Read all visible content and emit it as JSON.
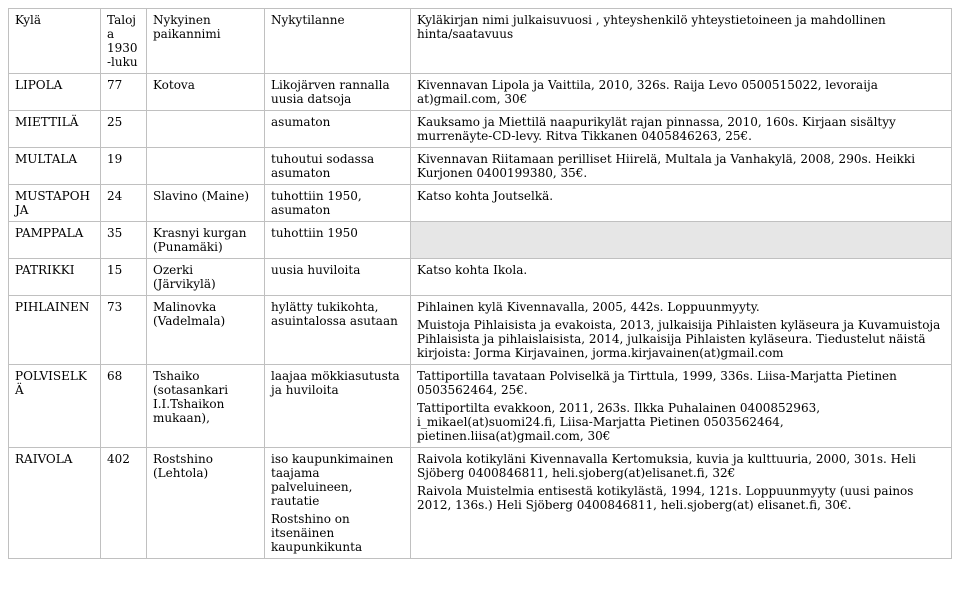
{
  "columns": [
    "Kylä",
    "Taloja 1930-luku",
    "Nykyinen paikannimi",
    "Nykytilanne",
    "Kyläkirjan nimi julkaisuvuosi , yhteyshenkilö yhteystietoineen ja  mahdollinen hinta/saatavuus"
  ],
  "rows": [
    {
      "kyla": "LIPOLA",
      "taloja": "77",
      "nimi": "Kotova",
      "tilanne": "Likojärven rannalla uusia datsoja",
      "kirja": [
        "Kivennavan Lipola ja Vaittila, 2010, 326s. Raija Levo 0500515022, levoraija at)gmail.com, 30€"
      ]
    },
    {
      "kyla": "MIETTILÄ",
      "taloja": "25",
      "nimi": "",
      "tilanne": "asumaton",
      "kirja": [
        "Kauksamo ja Miettilä naapurikylät rajan pinnassa, 2010, 160s. Kirjaan sisältyy murrenäyte-CD-levy. Ritva Tikkanen 0405846263, 25€."
      ]
    },
    {
      "kyla": "MULTALA",
      "taloja": "19",
      "nimi": "",
      "tilanne": "tuhoutui sodassa asumaton",
      "kirja": [
        "Kivennavan Riitamaan perilliset Hiirelä, Multala ja Vanhakylä, 2008, 290s. Heikki Kurjonen 0400199380, 35€."
      ]
    },
    {
      "kyla": "MUSTAPOHJA",
      "taloja": "24",
      "nimi": "Slavino (Maine)",
      "tilanne": "tuhottiin 1950, asumaton",
      "kirja": [
        "Katso kohta Joutselkä."
      ]
    },
    {
      "kyla": "PAMPPALA",
      "taloja": "35",
      "nimi": "Krasnyi kurgan (Punamäki)",
      "tilanne": "tuhottiin 1950",
      "kirja": [],
      "shaded": true
    },
    {
      "kyla": "PATRIKKI",
      "taloja": "15",
      "nimi": "Ozerki (Järvikylä)",
      "tilanne": "uusia huviloita",
      "kirja": [
        "Katso kohta Ikola."
      ]
    },
    {
      "kyla": "PIHLAINEN",
      "taloja": "73",
      "nimi": "Malinovka (Vadelmala)",
      "tilanne": "hylätty tukikohta, asuintalossa asutaan",
      "kirja": [
        "Pihlainen kylä Kivennavalla, 2005, 442s. Loppuunmyyty.",
        "Muistoja Pihlaisista ja evakoista, 2013, julkaisija Pihlaisten kyläseura ja Kuvamuistoja Pihlaisista ja pihlaislaisista, 2014, julkaisija Pihlaisten kyläseura. Tiedustelut näistä kirjoista: Jorma Kirjavainen, jorma.kirjavainen(at)gmail.com"
      ]
    },
    {
      "kyla": "POLVISELKÄ",
      "taloja": "68",
      "nimi": "Tshaiko (sotasankari I.I.Tshaikon mukaan),",
      "tilanne": "laajaa mökkiasutusta ja huviloita",
      "kirja": [
        "Tattiportilla tavataan Polviselkä ja Tirttula, 1999, 336s. Liisa-Marjatta Pietinen 0503562464, 25€.",
        "Tattiportilta evakkoon, 2011, 263s. Ilkka Puhalainen 0400852963, i_mikael(at)suomi24.fi, Liisa-Marjatta Pietinen 0503562464, pietinen.liisa(at)gmail.com, 30€"
      ]
    },
    {
      "kyla": "RAIVOLA",
      "taloja": "402",
      "nimi": "Rostshino (Lehtola)",
      "tilanne_multi": [
        "iso kaupunkimainen taajama palveluineen, rautatie",
        "Rostshino on itsenäinen kaupunkikunta"
      ],
      "kirja": [
        "Raivola kotikyläni Kivennavalla Kertomuksia, kuvia ja kulttuuria, 2000, 301s. Heli Sjöberg 0400846811, heli.sjoberg(at)elisanet.fi, 32€",
        "Raivola Muistelmia entisestä kotikylästä, 1994, 121s. Loppuunmyyty (uusi painos 2012, 136s.) Heli Sjöberg 0400846811, heli.sjoberg(at) elisanet.fi, 30€."
      ]
    }
  ]
}
